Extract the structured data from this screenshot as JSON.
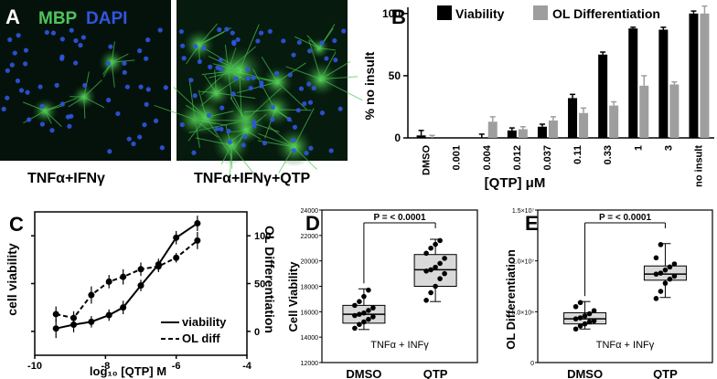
{
  "panel_letters": {
    "a": "A",
    "b": "B",
    "c": "C",
    "d": "D",
    "e": "E"
  },
  "panel_a": {
    "stain_labels": [
      "MBP",
      "DAPI"
    ],
    "stain_colors": [
      "#4fc45a",
      "#2f57e0"
    ],
    "captions": [
      "TNFα+IFNγ",
      "TNFα+IFNγ+QTP"
    ]
  },
  "chart_data": [
    {
      "panel": "B",
      "type": "bar",
      "xlabel": "[QTP] μM",
      "ylabel": "% no insult",
      "ylim": [
        0,
        105
      ],
      "yticks": [
        0,
        50,
        100
      ],
      "legend_position": "top",
      "categories": [
        "DMSO",
        "0.001",
        "0.004",
        "0.012",
        "0.037",
        "0.11",
        "0.33",
        "1",
        "3",
        "no insult"
      ],
      "series": [
        {
          "name": "Viability",
          "color": "#000000",
          "values": [
            2,
            0,
            0,
            6,
            9,
            32,
            67,
            88,
            87,
            100
          ],
          "errors": [
            4,
            0,
            3,
            2,
            2,
            3,
            2,
            1,
            2,
            2
          ]
        },
        {
          "name": "OL Differentiation",
          "color": "#9e9e9e",
          "values": [
            0,
            0,
            13,
            7,
            14,
            20,
            26,
            42,
            43,
            100
          ],
          "errors": [
            2,
            0,
            4,
            2,
            3,
            4,
            3,
            8,
            2,
            6
          ]
        }
      ]
    },
    {
      "panel": "C",
      "type": "scatter",
      "xlabel": "log₁₀ [QTP] M",
      "ylabel": "cell viability",
      "ylabel_right": "OL Differentiation",
      "xlim": [
        -10,
        -4
      ],
      "xticks": [
        -10,
        -8,
        -6,
        -4
      ],
      "ylim": [
        -25,
        125
      ],
      "yticks": [
        0,
        50,
        100
      ],
      "legend_position": "bottom-right",
      "series": [
        {
          "name": "viability",
          "style": "solid",
          "x": [
            -9.4,
            -8.9,
            -8.4,
            -7.9,
            -7.5,
            -7.0,
            -6.5,
            -6.0,
            -5.4
          ],
          "y": [
            3,
            7,
            10,
            17,
            25,
            48,
            70,
            98,
            113
          ],
          "errors": [
            10,
            8,
            6,
            6,
            7,
            6,
            6,
            7,
            8
          ]
        },
        {
          "name": "OL diff",
          "style": "dashed",
          "x": [
            -9.4,
            -8.9,
            -8.4,
            -7.9,
            -7.5,
            -7.0,
            -6.5,
            -6.0,
            -5.4
          ],
          "y": [
            18,
            14,
            38,
            52,
            57,
            65,
            68,
            77,
            95
          ],
          "errors": [
            8,
            7,
            9,
            7,
            8,
            7,
            6,
            5,
            9
          ]
        }
      ]
    },
    {
      "panel": "D",
      "type": "box",
      "ylabel": "Cell Viability",
      "ylim": [
        12000,
        24000
      ],
      "yticks": [
        12000,
        14000,
        16000,
        18000,
        20000,
        22000,
        24000
      ],
      "categories": [
        "DMSO",
        "QTP"
      ],
      "annotation": "P = < 0.0001",
      "inner_label": "TNFα + INFγ",
      "boxes": [
        {
          "min": 14600,
          "q1": 15100,
          "median": 15800,
          "q3": 16500,
          "max": 17800
        },
        {
          "min": 16800,
          "q1": 18000,
          "median": 19300,
          "q3": 20500,
          "max": 21700
        }
      ],
      "points": [
        [
          14700,
          15000,
          15200,
          15400,
          15600,
          15700,
          15800,
          15900,
          16100,
          16300,
          16500,
          16800,
          17200,
          17700
        ],
        [
          16900,
          17500,
          18000,
          18600,
          19000,
          19200,
          19300,
          19500,
          19800,
          20200,
          20600,
          21000,
          21300,
          21600
        ]
      ]
    },
    {
      "panel": "E",
      "type": "box",
      "ylabel": "OL Differentiation",
      "ylim": [
        0,
        15000000
      ],
      "yticks": [
        0,
        5000000,
        10000000,
        15000000
      ],
      "ytick_labels": [
        "0",
        "5.0×10⁶",
        "1.0×10⁷",
        "1.5×10⁷"
      ],
      "categories": [
        "DMSO",
        "QTP"
      ],
      "annotation": "P = < 0.0001",
      "inner_label": "TNFα + INFγ",
      "boxes": [
        {
          "min": 3300000,
          "q1": 3800000,
          "median": 4300000,
          "q3": 4900000,
          "max": 6000000
        },
        {
          "min": 6400000,
          "q1": 8100000,
          "median": 8700000,
          "q3": 9500000,
          "max": 11700000
        }
      ],
      "points": [
        [
          3300000,
          3600000,
          3800000,
          4000000,
          4100000,
          4300000,
          4400000,
          4600000,
          4800000,
          5100000,
          5500000,
          5900000
        ],
        [
          6300000,
          7000000,
          7800000,
          8200000,
          8500000,
          8700000,
          8800000,
          9100000,
          9400000,
          9700000,
          10300000,
          11600000
        ]
      ]
    }
  ]
}
